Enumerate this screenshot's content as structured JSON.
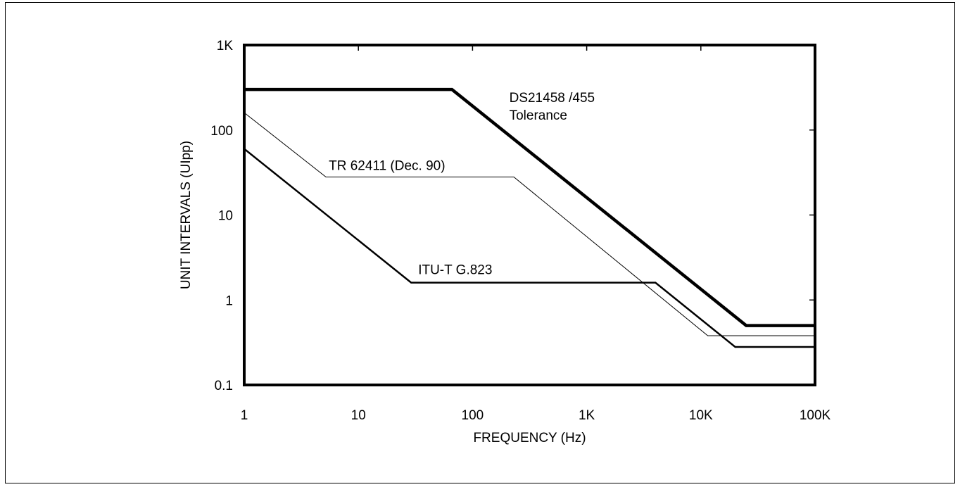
{
  "chart_data": {
    "type": "line",
    "title": "",
    "xlabel": "FREQUENCY (Hz)",
    "ylabel": "UNIT INTERVALS (UIpp)",
    "xscale": "log",
    "yscale": "log",
    "xlim": [
      1,
      100000
    ],
    "ylim": [
      0.1,
      1000
    ],
    "x_ticks": [
      1,
      10,
      100,
      1000,
      10000,
      100000
    ],
    "x_tick_labels": [
      "1",
      "10",
      "100",
      "1K",
      "10K",
      "100K"
    ],
    "y_ticks": [
      0.1,
      1,
      10,
      100,
      1000
    ],
    "y_tick_labels": [
      "0.1",
      "1",
      "10",
      "100",
      "1K"
    ],
    "grid": false,
    "series": [
      {
        "name": "DS21458 /455 Tolerance",
        "label_lines": [
          "DS21458 /455",
          "Tolerance"
        ],
        "color": "#000000",
        "weight": "heavy",
        "x": [
          1,
          66,
          25000,
          100000
        ],
        "y": [
          300,
          300,
          0.5,
          0.5
        ]
      },
      {
        "name": "TR 62411 (Dec. 90)",
        "label_lines": [
          "TR 62411 (Dec. 90)"
        ],
        "color": "#000000",
        "weight": "thin",
        "x": [
          1,
          5.2,
          230,
          11500,
          100000
        ],
        "y": [
          160,
          28,
          28,
          0.38,
          0.38
        ]
      },
      {
        "name": "ITU-T G.823",
        "label_lines": [
          "ITU-T G.823"
        ],
        "color": "#000000",
        "weight": "medium",
        "x": [
          1,
          29,
          4000,
          20000,
          100000
        ],
        "y": [
          60,
          1.6,
          1.6,
          0.28,
          0.28
        ]
      }
    ]
  }
}
